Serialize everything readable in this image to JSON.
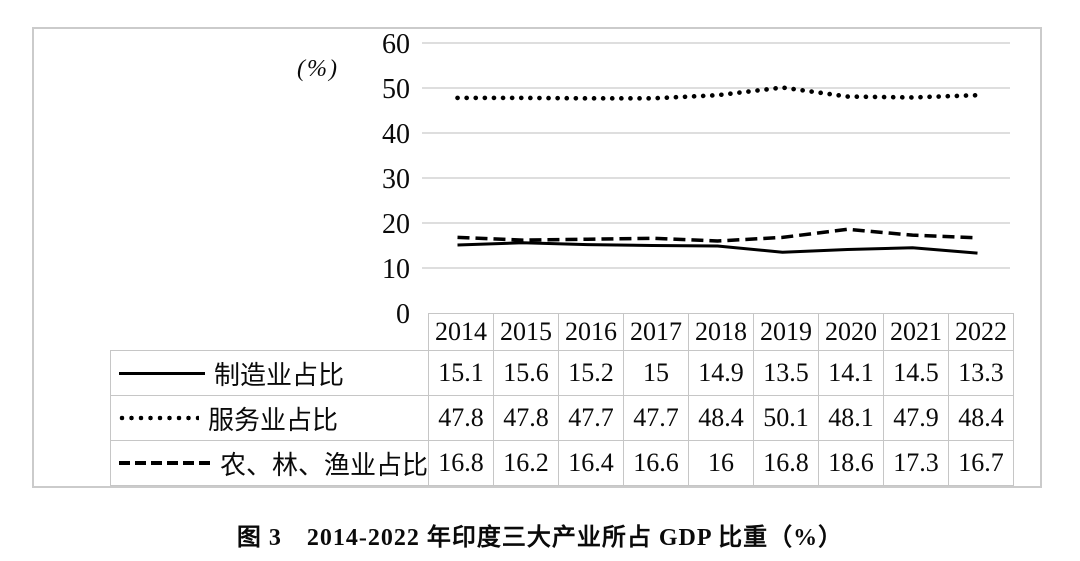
{
  "chart_data": {
    "type": "line",
    "unit_label": "(%)",
    "categories": [
      "2014",
      "2015",
      "2016",
      "2017",
      "2018",
      "2019",
      "2020",
      "2021",
      "2022"
    ],
    "series": [
      {
        "name": "制造业占比",
        "line_style": "solid",
        "values": [
          15.1,
          15.6,
          15.2,
          15,
          14.9,
          13.5,
          14.1,
          14.5,
          13.3
        ]
      },
      {
        "name": "服务业占比",
        "line_style": "dotted",
        "values": [
          47.8,
          47.8,
          47.7,
          47.7,
          48.4,
          50.1,
          48.1,
          47.9,
          48.4
        ]
      },
      {
        "name": "农、林、渔业占比",
        "line_style": "dashed",
        "values": [
          16.8,
          16.2,
          16.4,
          16.6,
          16,
          16.8,
          18.6,
          17.3,
          16.7
        ]
      }
    ],
    "ylim": [
      0,
      60
    ],
    "yticks": [
      0,
      10,
      20,
      30,
      40,
      50,
      60
    ],
    "grid": "horizontal",
    "legend_position": "table-left",
    "colors": {
      "line": "#000000",
      "grid": "#d9d9d9",
      "table_border": "#c6c6c6",
      "frame_border": "#cbcbcb",
      "text": "#0a0a0a",
      "background": "#ffffff"
    }
  },
  "caption": "图 3　2014-2022 年印度三大产业所占 GDP 比重（%）"
}
